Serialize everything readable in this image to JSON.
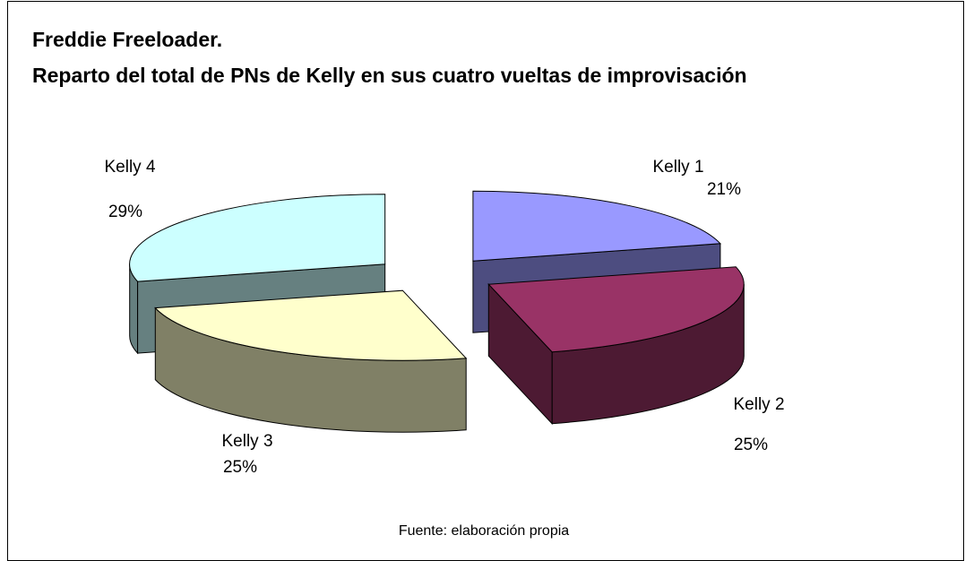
{
  "chart_data": {
    "type": "pie",
    "title": [
      "Freddie Freeloader.",
      "Reparto del total de PNs de Kelly en sus cuatro vueltas de improvisación"
    ],
    "categories": [
      "Kelly 1",
      "Kelly 2",
      "Kelly 3",
      "Kelly 4"
    ],
    "values": [
      21,
      25,
      25,
      29
    ],
    "value_labels": [
      "21%",
      "25%",
      "25%",
      "29%"
    ],
    "colors": [
      "#9999ff",
      "#993366",
      "#ffffcc",
      "#ccffff"
    ],
    "note": "Fuente: elaboración propia"
  }
}
